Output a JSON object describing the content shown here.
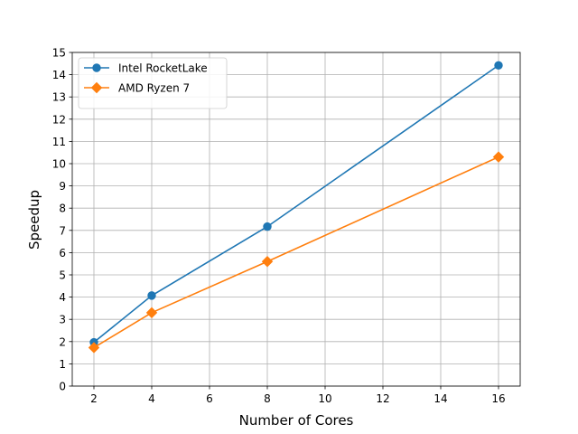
{
  "chart_data": {
    "type": "line",
    "title": "",
    "xlabel": "Number of Cores",
    "ylabel": "Speedup",
    "x": [
      2,
      4,
      8,
      16
    ],
    "xlim": [
      1.25,
      16.75
    ],
    "ylim": [
      0,
      15
    ],
    "xticks": [
      2,
      4,
      6,
      8,
      10,
      12,
      14,
      16
    ],
    "yticks": [
      0,
      1,
      2,
      3,
      4,
      5,
      6,
      7,
      8,
      9,
      10,
      11,
      12,
      13,
      14,
      15
    ],
    "grid": true,
    "legend_position": "top-left",
    "series": [
      {
        "name": "Intel RocketLake",
        "values": [
          1.97,
          4.07,
          7.17,
          14.42
        ],
        "color": "#1f77b4",
        "marker": "circle"
      },
      {
        "name": "AMD Ryzen 7",
        "values": [
          1.73,
          3.3,
          5.6,
          10.3
        ],
        "color": "#ff7f0e",
        "marker": "diamond"
      }
    ]
  }
}
